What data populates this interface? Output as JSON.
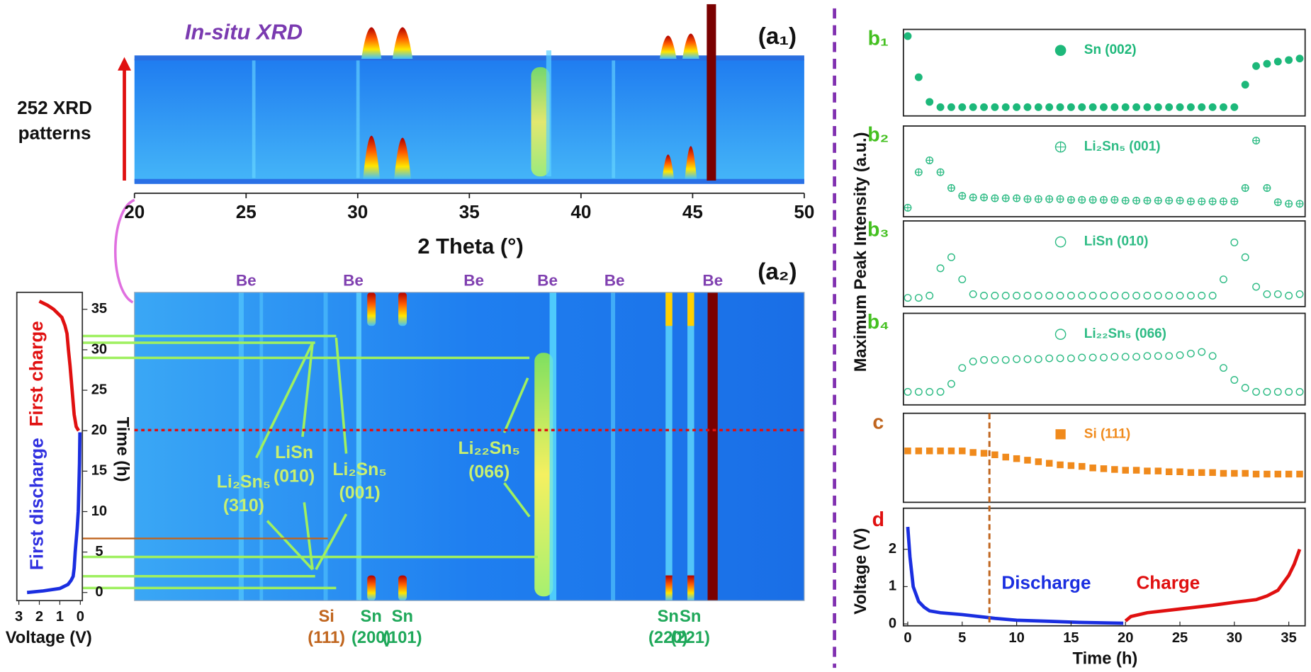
{
  "a1": {
    "title": "In-situ XRD",
    "label": "(a₁)",
    "side_label": [
      "252 XRD",
      "patterns"
    ],
    "xlabel": "2 Theta (°)",
    "xlim": [
      20,
      50
    ],
    "xticks": [
      20,
      25,
      30,
      35,
      40,
      45,
      50
    ]
  },
  "a2": {
    "label": "(a₂)",
    "be_labels": [
      {
        "text": "Be",
        "x": 25.0
      },
      {
        "text": "Be",
        "x": 29.8
      },
      {
        "text": "Be",
        "x": 35.2
      },
      {
        "text": "Be",
        "x": 38.5
      },
      {
        "text": "Be",
        "x": 41.5
      },
      {
        "text": "Be",
        "x": 45.9
      }
    ],
    "peak_labels": [
      {
        "phase": "Si",
        "hkl": "(111)",
        "x": 28.6,
        "color": "#c0651e"
      },
      {
        "phase": "Sn",
        "hkl": "(200)",
        "x": 30.6,
        "color": "#1fa85a"
      },
      {
        "phase": "Sn",
        "hkl": "(101)",
        "x": 32.0,
        "color": "#1fa85a"
      },
      {
        "phase": "Sn",
        "hkl": "(220)",
        "x": 43.9,
        "color": "#1fa85a"
      },
      {
        "phase": "Sn",
        "hkl": "(221)",
        "x": 44.9,
        "color": "#1fa85a"
      }
    ],
    "phase_labels": [
      [
        "Li₂Sn₅",
        "(310)"
      ],
      [
        "LiSn",
        "(010)"
      ],
      [
        "Li₂Sn₅",
        "(001)"
      ],
      [
        "Li₂₂Sn₅",
        "(066)"
      ]
    ],
    "ylabel": "Time (h)",
    "ylim": [
      -1,
      37.1
    ],
    "yticks": [
      0,
      5,
      10,
      15,
      20,
      25,
      30,
      35
    ],
    "voltage_xlabel": "Voltage (V)",
    "voltage_xlim": [
      3.1,
      -0.1
    ],
    "voltage_xticks": [
      3,
      2,
      1,
      0
    ],
    "first_charge": "First charge",
    "first_discharge": "First discharge"
  },
  "b": {
    "ylabel": "Maximum Peak Intensity (a.u.)",
    "ylim": [
      0,
      1
    ],
    "time": [
      0,
      1,
      2,
      3,
      4,
      5,
      6,
      7,
      8,
      9,
      10,
      11,
      12,
      13,
      14,
      15,
      16,
      17,
      18,
      19,
      20,
      21,
      22,
      23,
      24,
      25,
      26,
      27,
      28,
      29,
      30,
      31,
      32,
      33,
      34,
      35,
      36
    ],
    "panels": [
      {
        "label": "b₁",
        "legend": "Sn (002)",
        "marker": "filled",
        "color": "#1db87a",
        "values": [
          1.0,
          0.45,
          0.12,
          0.05,
          0.05,
          0.05,
          0.05,
          0.05,
          0.05,
          0.05,
          0.05,
          0.05,
          0.05,
          0.05,
          0.05,
          0.05,
          0.05,
          0.05,
          0.05,
          0.05,
          0.05,
          0.05,
          0.05,
          0.05,
          0.05,
          0.05,
          0.05,
          0.05,
          0.05,
          0.05,
          0.05,
          0.35,
          0.6,
          0.63,
          0.66,
          0.68,
          0.7
        ]
      },
      {
        "label": "b₂",
        "legend": "Li₂Sn₅ (001)",
        "marker": "cross",
        "color": "#2dbb84",
        "values": [
          0.05,
          0.5,
          0.65,
          0.5,
          0.3,
          0.2,
          0.18,
          0.18,
          0.17,
          0.17,
          0.17,
          0.16,
          0.16,
          0.16,
          0.16,
          0.15,
          0.15,
          0.15,
          0.15,
          0.15,
          0.14,
          0.14,
          0.14,
          0.14,
          0.14,
          0.14,
          0.13,
          0.13,
          0.13,
          0.13,
          0.13,
          0.3,
          0.9,
          0.3,
          0.12,
          0.1,
          0.1
        ]
      },
      {
        "label": "b₃",
        "legend": "LiSn (010)",
        "marker": "open",
        "color": "#2dbb84",
        "values": [
          0.05,
          0.05,
          0.08,
          0.45,
          0.6,
          0.3,
          0.1,
          0.08,
          0.08,
          0.08,
          0.08,
          0.08,
          0.08,
          0.08,
          0.08,
          0.08,
          0.08,
          0.08,
          0.08,
          0.08,
          0.08,
          0.08,
          0.08,
          0.08,
          0.08,
          0.08,
          0.08,
          0.08,
          0.08,
          0.3,
          0.8,
          0.6,
          0.2,
          0.1,
          0.1,
          0.08,
          0.1
        ]
      },
      {
        "label": "b₄",
        "legend": "Li₂₂Sn₅ (066)",
        "marker": "open",
        "color": "#2dbb84",
        "values": [
          0.1,
          0.1,
          0.1,
          0.1,
          0.2,
          0.4,
          0.48,
          0.5,
          0.5,
          0.5,
          0.51,
          0.51,
          0.51,
          0.52,
          0.52,
          0.52,
          0.53,
          0.53,
          0.53,
          0.54,
          0.54,
          0.54,
          0.55,
          0.55,
          0.55,
          0.56,
          0.58,
          0.6,
          0.55,
          0.4,
          0.25,
          0.15,
          0.1,
          0.1,
          0.1,
          0.1,
          0.1
        ]
      },
      {
        "label": "c",
        "legend": "Si (111)",
        "marker": "square",
        "color": "#f08a1c",
        "values": [
          0.6,
          0.6,
          0.6,
          0.6,
          0.6,
          0.6,
          0.58,
          0.57,
          0.55,
          0.52,
          0.5,
          0.48,
          0.46,
          0.44,
          0.42,
          0.41,
          0.4,
          0.38,
          0.37,
          0.36,
          0.35,
          0.35,
          0.34,
          0.34,
          0.33,
          0.33,
          0.32,
          0.32,
          0.32,
          0.31,
          0.31,
          0.31,
          0.3,
          0.3,
          0.3,
          0.3,
          0.3
        ]
      }
    ],
    "marker_time": 7.5
  },
  "d": {
    "label": "d",
    "ylabel": "Voltage (V)",
    "xlabel": "Time (h)",
    "discharge": "Discharge",
    "charge": "Charge",
    "x": [
      0,
      0.2,
      0.5,
      1,
      1.5,
      2,
      3,
      5,
      8,
      10,
      13,
      16,
      19.8,
      20,
      20.5,
      22,
      25,
      28,
      30,
      32,
      33,
      34,
      35,
      35.5,
      36
    ],
    "y": [
      2.6,
      1.8,
      1.0,
      0.6,
      0.45,
      0.35,
      0.3,
      0.25,
      0.15,
      0.1,
      0.07,
      0.04,
      0.02,
      0.08,
      0.2,
      0.3,
      0.4,
      0.5,
      0.58,
      0.65,
      0.75,
      0.9,
      1.3,
      1.6,
      2.0
    ],
    "xlim": [
      -0.4,
      36.5
    ],
    "xticks": [
      0,
      5,
      10,
      15,
      20,
      25,
      30,
      35
    ],
    "ylim": [
      -0.05,
      3.1
    ],
    "yticks": [
      0,
      1,
      2
    ]
  }
}
